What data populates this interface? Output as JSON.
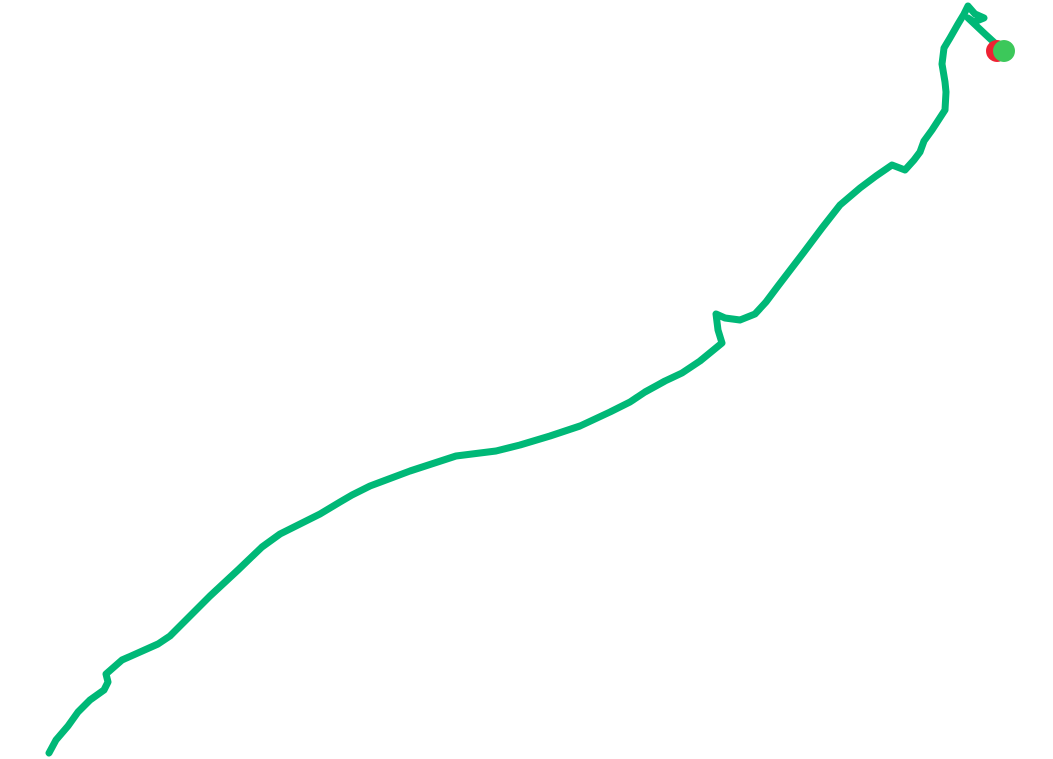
{
  "map": {
    "background_color": "#ffffff",
    "track": {
      "color": "#00b877"
    },
    "start_marker": {
      "color": "#ee2233"
    },
    "end_marker": {
      "color": "#3cc85a"
    }
  }
}
